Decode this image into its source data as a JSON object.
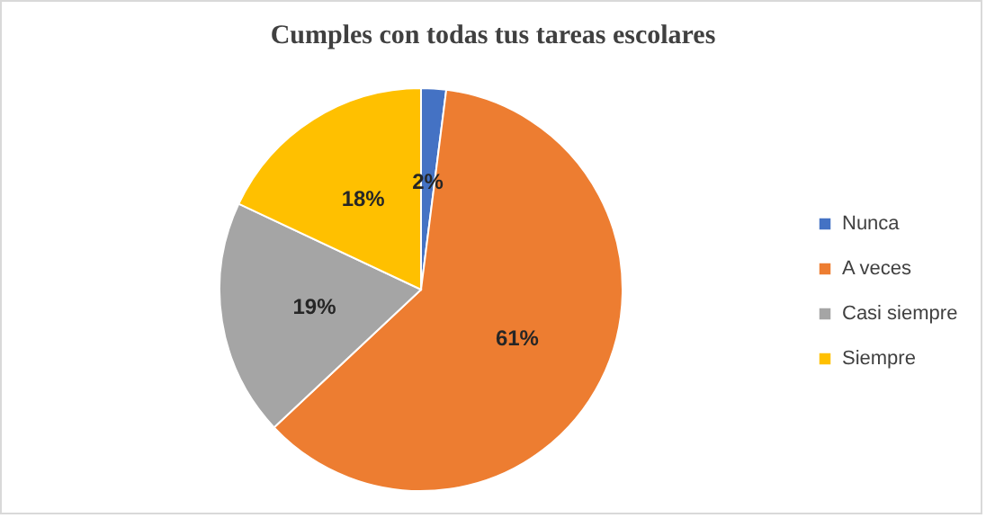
{
  "chart_data": {
    "type": "pie",
    "title": "Cumples con todas tus tareas escolares",
    "categories": [
      "Nunca",
      "A veces",
      "Casi siempre",
      "Siempre"
    ],
    "values": [
      2,
      61,
      19,
      18
    ],
    "colors": [
      "#4472c4",
      "#ed7d31",
      "#a5a5a5",
      "#ffc000"
    ],
    "value_labels": [
      "2%",
      "61%",
      "19%",
      "18%"
    ],
    "legend": "right"
  }
}
